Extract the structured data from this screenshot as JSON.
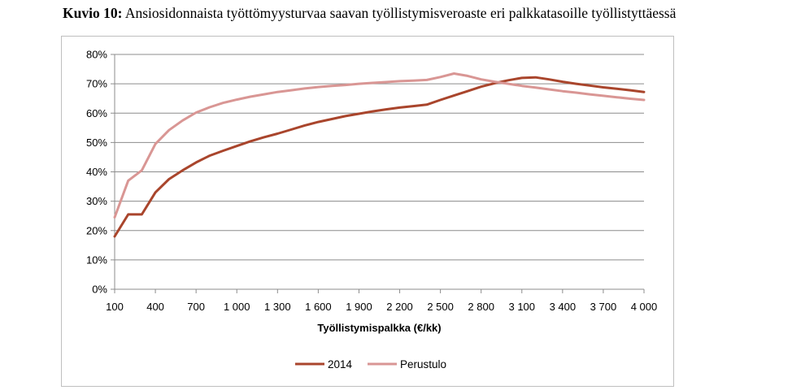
{
  "caption": {
    "label": "Kuvio 10:",
    "text": "Ansiosidonnaista työttömyysturvaa saavan työllistymisveroaste eri palkkatasoille työllistyttäessä"
  },
  "chart_data": {
    "type": "line",
    "xlabel": "Työllistymispalkka (€/kk)",
    "ylabel": "",
    "xlim": [
      100,
      4000
    ],
    "ylim": [
      0,
      80
    ],
    "x_ticks": [
      {
        "value": 100,
        "label": "100"
      },
      {
        "value": 400,
        "label": "400"
      },
      {
        "value": 700,
        "label": "700"
      },
      {
        "value": 1000,
        "label": "1 000"
      },
      {
        "value": 1300,
        "label": "1 300"
      },
      {
        "value": 1600,
        "label": "1 600"
      },
      {
        "value": 1900,
        "label": "1 900"
      },
      {
        "value": 2200,
        "label": "2 200"
      },
      {
        "value": 2500,
        "label": "2 500"
      },
      {
        "value": 2800,
        "label": "2 800"
      },
      {
        "value": 3100,
        "label": "3 100"
      },
      {
        "value": 3400,
        "label": "3 400"
      },
      {
        "value": 3700,
        "label": "3 700"
      },
      {
        "value": 4000,
        "label": "4 000"
      }
    ],
    "y_ticks": [
      {
        "value": 0,
        "label": "0%"
      },
      {
        "value": 10,
        "label": "10%"
      },
      {
        "value": 20,
        "label": "20%"
      },
      {
        "value": 30,
        "label": "30%"
      },
      {
        "value": 40,
        "label": "40%"
      },
      {
        "value": 50,
        "label": "50%"
      },
      {
        "value": 60,
        "label": "60%"
      },
      {
        "value": 70,
        "label": "70%"
      },
      {
        "value": 80,
        "label": "80%"
      }
    ],
    "grid": true,
    "legend_position": "bottom",
    "series": [
      {
        "name": "2014",
        "color": "#a9452c",
        "points": [
          [
            100,
            18
          ],
          [
            200,
            25.5
          ],
          [
            300,
            25.5
          ],
          [
            400,
            33
          ],
          [
            500,
            37.5
          ],
          [
            600,
            40.5
          ],
          [
            700,
            43.2
          ],
          [
            800,
            45.5
          ],
          [
            900,
            47.2
          ],
          [
            1000,
            48.8
          ],
          [
            1100,
            50.4
          ],
          [
            1200,
            51.8
          ],
          [
            1300,
            53
          ],
          [
            1400,
            54.4
          ],
          [
            1500,
            55.8
          ],
          [
            1600,
            57
          ],
          [
            1700,
            58
          ],
          [
            1800,
            59
          ],
          [
            1900,
            59.8
          ],
          [
            2000,
            60.6
          ],
          [
            2100,
            61.3
          ],
          [
            2200,
            61.9
          ],
          [
            2300,
            62.4
          ],
          [
            2400,
            62.9
          ],
          [
            2500,
            64.5
          ],
          [
            2600,
            66
          ],
          [
            2700,
            67.5
          ],
          [
            2800,
            69
          ],
          [
            2900,
            70.2
          ],
          [
            3000,
            71.2
          ],
          [
            3100,
            72
          ],
          [
            3200,
            72.2
          ],
          [
            3300,
            71.5
          ],
          [
            3400,
            70.7
          ],
          [
            3500,
            70
          ],
          [
            3600,
            69.4
          ],
          [
            3700,
            68.8
          ],
          [
            3800,
            68.3
          ],
          [
            3900,
            67.8
          ],
          [
            4000,
            67.2
          ]
        ]
      },
      {
        "name": "Perustulo",
        "color": "#d99694",
        "points": [
          [
            100,
            24.5
          ],
          [
            200,
            37
          ],
          [
            300,
            40.5
          ],
          [
            400,
            49.5
          ],
          [
            500,
            54.2
          ],
          [
            600,
            57.5
          ],
          [
            700,
            60.2
          ],
          [
            800,
            62
          ],
          [
            900,
            63.5
          ],
          [
            1000,
            64.6
          ],
          [
            1100,
            65.6
          ],
          [
            1200,
            66.4
          ],
          [
            1300,
            67.2
          ],
          [
            1400,
            67.8
          ],
          [
            1500,
            68.4
          ],
          [
            1600,
            68.9
          ],
          [
            1700,
            69.3
          ],
          [
            1800,
            69.6
          ],
          [
            1900,
            70
          ],
          [
            2000,
            70.3
          ],
          [
            2100,
            70.6
          ],
          [
            2200,
            70.9
          ],
          [
            2300,
            71.1
          ],
          [
            2400,
            71.3
          ],
          [
            2500,
            72.3
          ],
          [
            2600,
            73.5
          ],
          [
            2700,
            72.7
          ],
          [
            2800,
            71.5
          ],
          [
            2900,
            70.7
          ],
          [
            3000,
            70
          ],
          [
            3100,
            69.3
          ],
          [
            3200,
            68.7
          ],
          [
            3300,
            68.1
          ],
          [
            3400,
            67.5
          ],
          [
            3500,
            67
          ],
          [
            3600,
            66.4
          ],
          [
            3700,
            65.9
          ],
          [
            3800,
            65.4
          ],
          [
            3900,
            64.9
          ],
          [
            4000,
            64.5
          ]
        ]
      }
    ]
  }
}
